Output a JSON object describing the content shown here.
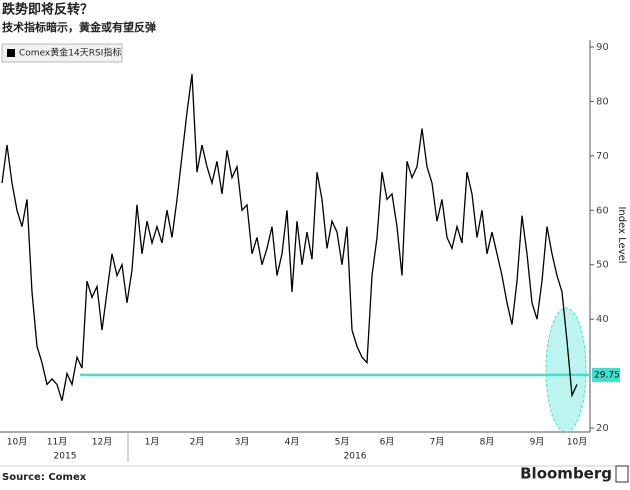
{
  "chart_data": {
    "type": "line",
    "title": "跌势即将反转？",
    "subtitle": "技术指标暗示，黄金或有望反弹",
    "y_axis_label": "Index Level",
    "source": "Source: Comex",
    "brand": "Bloomberg",
    "years": [
      "2015",
      "2016"
    ],
    "categories": [
      null,
      null,
      null,
      "10月",
      null,
      null,
      null,
      null,
      null,
      null,
      null,
      "11月",
      null,
      null,
      null,
      null,
      null,
      null,
      null,
      null,
      "12月",
      null,
      null,
      null,
      null,
      null,
      null,
      null,
      null,
      null,
      "1月",
      null,
      null,
      null,
      null,
      null,
      null,
      null,
      null,
      "2月",
      null,
      null,
      null,
      null,
      null,
      null,
      null,
      null,
      "3月",
      null,
      null,
      null,
      null,
      null,
      null,
      null,
      null,
      null,
      "4月",
      null,
      null,
      null,
      null,
      null,
      null,
      null,
      null,
      null,
      "5月",
      null,
      null,
      null,
      null,
      null,
      null,
      null,
      null,
      "6月",
      null,
      null,
      null,
      null,
      null,
      null,
      null,
      null,
      null,
      "7月",
      null,
      null,
      null,
      null,
      null,
      null,
      null,
      null,
      null,
      "8月",
      null,
      null,
      null,
      null,
      null,
      null,
      null,
      null,
      null,
      "9月",
      null,
      null,
      null,
      null,
      null,
      null,
      null,
      "10月"
    ],
    "series": [
      {
        "name": "Comex黄金14天RSI指标",
        "color": "#000000",
        "values": [
          65,
          72,
          65,
          60,
          57,
          62,
          45,
          35,
          32,
          28,
          29,
          28,
          25,
          30,
          28,
          33,
          31,
          47,
          44,
          46,
          38,
          45,
          52,
          48,
          50,
          43,
          49,
          61,
          52,
          58,
          54,
          57,
          54,
          60,
          55,
          62,
          70,
          78,
          85,
          67,
          72,
          68,
          65,
          69,
          63,
          71,
          66,
          68,
          60,
          61,
          52,
          55,
          50,
          53,
          57,
          48,
          52,
          60,
          45,
          58,
          50,
          56,
          51,
          67,
          62,
          53,
          58,
          56,
          50,
          57,
          38,
          35,
          33,
          32,
          48,
          55,
          67,
          62,
          63,
          57,
          48,
          69,
          66,
          68,
          75,
          68,
          65,
          58,
          62,
          55,
          53,
          57,
          54,
          67,
          63,
          55,
          60,
          52,
          56,
          52,
          48,
          43,
          39,
          47,
          59,
          52,
          43,
          40,
          47,
          57,
          52,
          48,
          45,
          36,
          26,
          28
        ]
      }
    ],
    "reference_line": {
      "value": 29.75,
      "color": "#3fe0d0"
    },
    "ylim": [
      20,
      90
    ],
    "yticks": [
      20,
      40,
      50,
      60,
      70,
      80,
      90
    ],
    "grid": false
  }
}
